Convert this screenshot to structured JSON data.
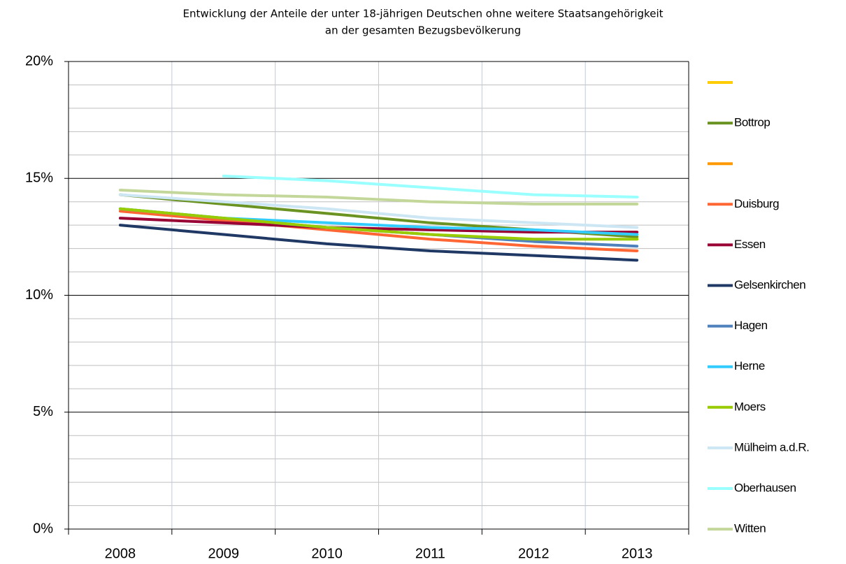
{
  "chart_data": {
    "type": "line",
    "title": [
      "Entwicklung der Anteile der unter 18-jährigen Deutschen ohne weitere Staatsangehörigkeit",
      "an der gesamten Bezugsbevölkerung"
    ],
    "categories": [
      "2008",
      "2009",
      "2010",
      "2011",
      "2012",
      "2013"
    ],
    "ylim": [
      0,
      20
    ],
    "yticks": [
      {
        "value": 0,
        "label": "0%"
      },
      {
        "value": 5,
        "label": "5%"
      },
      {
        "value": 10,
        "label": "10%"
      },
      {
        "value": 15,
        "label": "15%"
      },
      {
        "value": 20,
        "label": "20%"
      }
    ],
    "minor_yticks": [
      1,
      2,
      3,
      4,
      6,
      7,
      8,
      9,
      11,
      12,
      13,
      14,
      16,
      17,
      18,
      19
    ],
    "grid": true,
    "legend": "right",
    "series": [
      {
        "name": null,
        "color": "#ffcc00",
        "values": [
          null,
          null,
          null,
          null,
          null,
          null
        ]
      },
      {
        "name": "Bottrop",
        "color": "#6a9322",
        "values": [
          14.3,
          13.9,
          13.5,
          13.1,
          12.8,
          12.5
        ]
      },
      {
        "name": null,
        "color": "#ff9900",
        "values": [
          null,
          null,
          null,
          null,
          null,
          null
        ]
      },
      {
        "name": "Duisburg",
        "color": "#ff6633",
        "values": [
          13.6,
          13.2,
          12.8,
          12.4,
          12.1,
          11.9
        ]
      },
      {
        "name": "Essen",
        "color": "#990033",
        "values": [
          13.3,
          13.1,
          12.9,
          12.8,
          12.7,
          12.7
        ]
      },
      {
        "name": "Gelsenkirchen",
        "color": "#1f3864",
        "values": [
          13.0,
          12.6,
          12.2,
          11.9,
          11.7,
          11.5
        ]
      },
      {
        "name": "Hagen",
        "color": "#4f81bd",
        "values": [
          13.7,
          13.3,
          12.9,
          12.6,
          12.3,
          12.1
        ]
      },
      {
        "name": "Herne",
        "color": "#33ccff",
        "values": [
          13.7,
          13.3,
          13.1,
          12.9,
          12.8,
          12.6
        ]
      },
      {
        "name": "Moers",
        "color": "#99cc00",
        "values": [
          13.7,
          13.3,
          12.9,
          12.6,
          12.4,
          12.4
        ]
      },
      {
        "name": "Mülheim a.d.R.",
        "color": "#cce6f4",
        "values": [
          14.3,
          14.0,
          13.7,
          13.3,
          13.1,
          12.9
        ]
      },
      {
        "name": "Oberhausen",
        "color": "#99ffff",
        "values": [
          null,
          15.1,
          14.9,
          14.6,
          14.3,
          14.2
        ]
      },
      {
        "name": "Witten",
        "color": "#c4d79b",
        "values": [
          14.5,
          14.3,
          14.2,
          14.0,
          13.9,
          13.9
        ]
      }
    ]
  }
}
